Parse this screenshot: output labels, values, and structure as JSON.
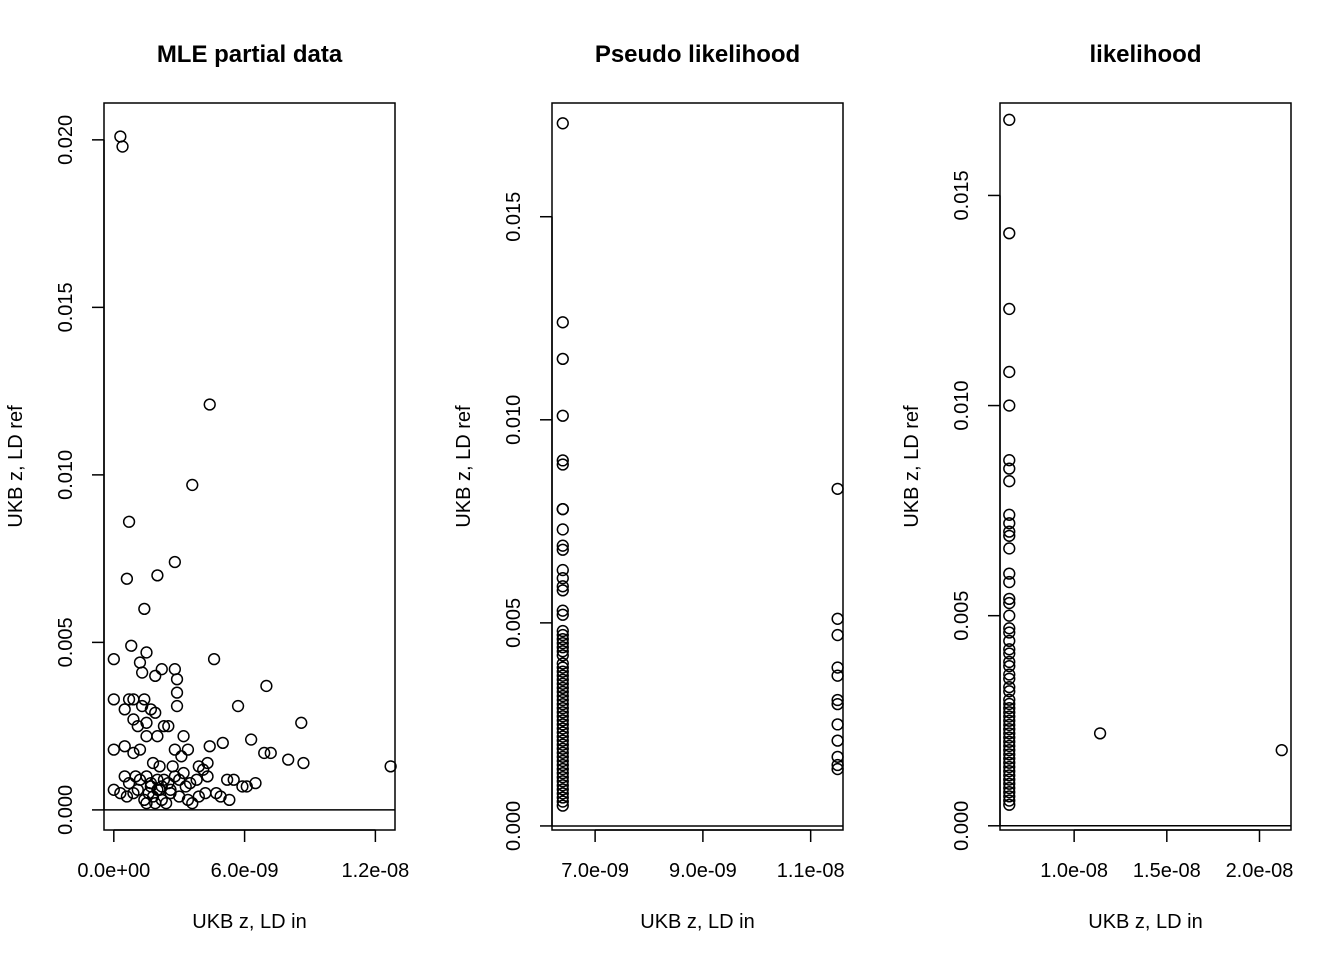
{
  "chart_data": [
    {
      "type": "scatter",
      "title": "MLE partial data",
      "xlabel": "UKB z, LD in",
      "ylabel": "UKB z, LD ref",
      "xlim": [
        -4.5e-10,
        1.29e-08
      ],
      "ylim": [
        -0.0006,
        0.0211
      ],
      "xticks": [
        0,
        6e-09,
        1.2e-08
      ],
      "xtick_labels": [
        "0.0e+00",
        "6.0e-09",
        "1.2e-08"
      ],
      "yticks": [
        0,
        0.005,
        0.01,
        0.015,
        0.02
      ],
      "ytick_labels": [
        "0.000",
        "0.005",
        "0.010",
        "0.015",
        "0.020"
      ],
      "hline": 0,
      "grid": false,
      "points": [
        [
          3e-10,
          0.0201
        ],
        [
          4e-10,
          0.0198
        ],
        [
          4.4e-09,
          0.0121
        ],
        [
          3.6e-09,
          0.0097
        ],
        [
          7e-10,
          0.0086
        ],
        [
          2.8e-09,
          0.0074
        ],
        [
          2e-09,
          0.007
        ],
        [
          6e-10,
          0.0069
        ],
        [
          1.4e-09,
          0.006
        ],
        [
          8e-10,
          0.0049
        ],
        [
          1.5e-09,
          0.0047
        ],
        [
          0,
          0.0045
        ],
        [
          1.2e-09,
          0.0044
        ],
        [
          4.6e-09,
          0.0045
        ],
        [
          2.2e-09,
          0.0042
        ],
        [
          2.8e-09,
          0.0042
        ],
        [
          1.3e-09,
          0.0041
        ],
        [
          1.9e-09,
          0.004
        ],
        [
          2.9e-09,
          0.0039
        ],
        [
          7e-09,
          0.0037
        ],
        [
          2.9e-09,
          0.0035
        ],
        [
          0,
          0.0033
        ],
        [
          7e-10,
          0.0033
        ],
        [
          9e-10,
          0.0033
        ],
        [
          1.4e-09,
          0.0033
        ],
        [
          2.9e-09,
          0.0031
        ],
        [
          5.7e-09,
          0.0031
        ],
        [
          1.7e-09,
          0.003
        ],
        [
          1.9e-09,
          0.0029
        ],
        [
          5e-10,
          0.003
        ],
        [
          1.3e-09,
          0.0031
        ],
        [
          9e-10,
          0.0027
        ],
        [
          1.1e-09,
          0.0025
        ],
        [
          1.5e-09,
          0.0026
        ],
        [
          2.3e-09,
          0.0025
        ],
        [
          2.5e-09,
          0.0025
        ],
        [
          8.6e-09,
          0.0026
        ],
        [
          6.3e-09,
          0.0021
        ],
        [
          1.5e-09,
          0.0022
        ],
        [
          2e-09,
          0.0022
        ],
        [
          3.2e-09,
          0.0022
        ],
        [
          2.8e-09,
          0.0018
        ],
        [
          3.4e-09,
          0.0018
        ],
        [
          4.4e-09,
          0.0019
        ],
        [
          5e-09,
          0.002
        ],
        [
          6.9e-09,
          0.0017
        ],
        [
          7.2e-09,
          0.0017
        ],
        [
          8e-09,
          0.0015
        ],
        [
          8.7e-09,
          0.0014
        ],
        [
          1.27e-08,
          0.0013
        ],
        [
          0,
          0.0018
        ],
        [
          5e-10,
          0.0019
        ],
        [
          9e-10,
          0.0017
        ],
        [
          1.2e-09,
          0.0018
        ],
        [
          1.8e-09,
          0.0014
        ],
        [
          2.1e-09,
          0.0013
        ],
        [
          2.7e-09,
          0.0013
        ],
        [
          3.1e-09,
          0.0016
        ],
        [
          3.9e-09,
          0.0013
        ],
        [
          4.3e-09,
          0.0014
        ],
        [
          5e-10,
          0.001
        ],
        [
          7e-10,
          0.0008
        ],
        [
          1e-09,
          0.001
        ],
        [
          1.2e-09,
          0.0009
        ],
        [
          1.5e-09,
          0.001
        ],
        [
          1.7e-09,
          0.0008
        ],
        [
          2e-09,
          0.0009
        ],
        [
          2.2e-09,
          0.0007
        ],
        [
          2.5e-09,
          0.0008
        ],
        [
          2.8e-09,
          0.001
        ],
        [
          3e-09,
          0.0009
        ],
        [
          3.2e-09,
          0.0011
        ],
        [
          3.5e-09,
          0.0008
        ],
        [
          3.8e-09,
          0.0009
        ],
        [
          4.1e-09,
          0.0012
        ],
        [
          4.3e-09,
          0.001
        ],
        [
          4.7e-09,
          0.0005
        ],
        [
          5.2e-09,
          0.0009
        ],
        [
          5.5e-09,
          0.0009
        ],
        [
          5.9e-09,
          0.0007
        ],
        [
          6.1e-09,
          0.0007
        ],
        [
          6.5e-09,
          0.0008
        ],
        [
          0,
          0.0006
        ],
        [
          3e-10,
          0.0005
        ],
        [
          6e-10,
          0.0004
        ],
        [
          9e-10,
          0.0005
        ],
        [
          1.1e-09,
          0.0006
        ],
        [
          1.4e-09,
          0.0003
        ],
        [
          1.6e-09,
          0.0005
        ],
        [
          1.8e-09,
          0.0004
        ],
        [
          2e-09,
          0.0006
        ],
        [
          2.2e-09,
          0.0003
        ],
        [
          2.4e-09,
          0.0002
        ],
        [
          2.6e-09,
          0.0005
        ],
        [
          3e-09,
          0.0004
        ],
        [
          3.4e-09,
          0.0003
        ],
        [
          3.6e-09,
          0.0002
        ],
        [
          3.9e-09,
          0.0004
        ],
        [
          4.2e-09,
          0.0005
        ],
        [
          4.9e-09,
          0.0004
        ],
        [
          5.3e-09,
          0.0003
        ],
        [
          1.5e-09,
          0.0002
        ],
        [
          1.9e-09,
          0.0002
        ],
        [
          2.1e-09,
          0.0006
        ],
        [
          1.7e-09,
          0.0007
        ],
        [
          2.3e-09,
          0.0009
        ],
        [
          2.6e-09,
          0.0006
        ],
        [
          3.3e-09,
          0.0007
        ]
      ]
    },
    {
      "type": "scatter",
      "title": "Pseudo likelihood",
      "xlabel": "UKB z, LD in",
      "ylabel": "UKB z, LD ref",
      "xlim": [
        6.2e-09,
        1.16e-08
      ],
      "ylim": [
        -0.0001,
        0.0178
      ],
      "xticks": [
        7e-09,
        9e-09,
        1.1e-08
      ],
      "xtick_labels": [
        "7.0e-09",
        "9.0e-09",
        "1.1e-08"
      ],
      "yticks": [
        0,
        0.005,
        0.01,
        0.015
      ],
      "ytick_labels": [
        "0.000",
        "0.005",
        "0.010",
        "0.015"
      ],
      "hline": 0,
      "grid": false,
      "points": [
        [
          6.4e-09,
          0.0173
        ],
        [
          6.4e-09,
          0.0124
        ],
        [
          6.4e-09,
          0.0115
        ],
        [
          6.4e-09,
          0.0101
        ],
        [
          6.4e-09,
          0.009
        ],
        [
          6.4e-09,
          0.0089
        ],
        [
          6.4e-09,
          0.0078
        ],
        [
          6.4e-09,
          0.0078
        ],
        [
          6.4e-09,
          0.0073
        ],
        [
          6.4e-09,
          0.0069
        ],
        [
          6.4e-09,
          0.0068
        ],
        [
          6.4e-09,
          0.0063
        ],
        [
          6.4e-09,
          0.0061
        ],
        [
          6.4e-09,
          0.0059
        ],
        [
          6.4e-09,
          0.0058
        ],
        [
          6.4e-09,
          0.0053
        ],
        [
          6.4e-09,
          0.0052
        ],
        [
          6.4e-09,
          0.0048
        ],
        [
          6.4e-09,
          0.0047
        ],
        [
          6.4e-09,
          0.0046
        ],
        [
          6.4e-09,
          0.0045
        ],
        [
          6.4e-09,
          0.0044
        ],
        [
          6.4e-09,
          0.0043
        ],
        [
          6.4e-09,
          0.0042
        ],
        [
          6.4e-09,
          0.004
        ],
        [
          6.4e-09,
          0.0039
        ],
        [
          6.4e-09,
          0.0038
        ],
        [
          6.4e-09,
          0.0037
        ],
        [
          6.4e-09,
          0.0036
        ],
        [
          6.4e-09,
          0.0035
        ],
        [
          6.4e-09,
          0.0034
        ],
        [
          6.4e-09,
          0.0033
        ],
        [
          6.4e-09,
          0.0032
        ],
        [
          6.4e-09,
          0.0031
        ],
        [
          6.4e-09,
          0.003
        ],
        [
          6.4e-09,
          0.0029
        ],
        [
          6.4e-09,
          0.0028
        ],
        [
          6.4e-09,
          0.0027
        ],
        [
          6.4e-09,
          0.0026
        ],
        [
          6.4e-09,
          0.0025
        ],
        [
          6.4e-09,
          0.0024
        ],
        [
          6.4e-09,
          0.0023
        ],
        [
          6.4e-09,
          0.0022
        ],
        [
          6.4e-09,
          0.0021
        ],
        [
          6.4e-09,
          0.002
        ],
        [
          6.4e-09,
          0.0019
        ],
        [
          6.4e-09,
          0.0018
        ],
        [
          6.4e-09,
          0.0017
        ],
        [
          6.4e-09,
          0.0016
        ],
        [
          6.4e-09,
          0.0015
        ],
        [
          6.4e-09,
          0.0014
        ],
        [
          6.4e-09,
          0.0013
        ],
        [
          6.4e-09,
          0.0012
        ],
        [
          6.4e-09,
          0.0011
        ],
        [
          6.4e-09,
          0.001
        ],
        [
          6.4e-09,
          0.0009
        ],
        [
          6.4e-09,
          0.0008
        ],
        [
          6.4e-09,
          0.0007
        ],
        [
          6.4e-09,
          0.0006
        ],
        [
          6.4e-09,
          0.0005
        ],
        [
          1.15e-08,
          0.0083
        ],
        [
          1.15e-08,
          0.0051
        ],
        [
          1.15e-08,
          0.0047
        ],
        [
          1.15e-08,
          0.0039
        ],
        [
          1.15e-08,
          0.0037
        ],
        [
          1.15e-08,
          0.0031
        ],
        [
          1.15e-08,
          0.003
        ],
        [
          1.15e-08,
          0.0025
        ],
        [
          1.15e-08,
          0.0021
        ],
        [
          1.15e-08,
          0.0017
        ],
        [
          1.15e-08,
          0.0015
        ],
        [
          1.15e-08,
          0.0014
        ]
      ]
    },
    {
      "type": "scatter",
      "title": "likelihood",
      "xlabel": "UKB z, LD in",
      "ylabel": "UKB z, LD ref",
      "xlim": [
        6e-09,
        2.17e-08
      ],
      "ylim": [
        -0.0001,
        0.0172
      ],
      "xticks": [
        1e-08,
        1.5e-08,
        2e-08
      ],
      "xtick_labels": [
        "1.0e-08",
        "1.5e-08",
        "2.0e-08"
      ],
      "yticks": [
        0,
        0.005,
        0.01,
        0.015
      ],
      "ytick_labels": [
        "0.000",
        "0.005",
        "0.010",
        "0.015"
      ],
      "hline": 0,
      "grid": false,
      "points": [
        [
          6.5e-09,
          0.0168
        ],
        [
          6.5e-09,
          0.0141
        ],
        [
          6.5e-09,
          0.0123
        ],
        [
          6.5e-09,
          0.0108
        ],
        [
          6.5e-09,
          0.01
        ],
        [
          6.5e-09,
          0.0087
        ],
        [
          6.5e-09,
          0.0085
        ],
        [
          6.5e-09,
          0.0082
        ],
        [
          6.5e-09,
          0.0074
        ],
        [
          6.5e-09,
          0.0072
        ],
        [
          6.5e-09,
          0.007
        ],
        [
          6.5e-09,
          0.0069
        ],
        [
          6.5e-09,
          0.0066
        ],
        [
          6.5e-09,
          0.006
        ],
        [
          6.5e-09,
          0.0058
        ],
        [
          6.5e-09,
          0.0054
        ],
        [
          6.5e-09,
          0.0053
        ],
        [
          6.5e-09,
          0.005
        ],
        [
          6.5e-09,
          0.0047
        ],
        [
          6.5e-09,
          0.0046
        ],
        [
          6.5e-09,
          0.0044
        ],
        [
          6.5e-09,
          0.0042
        ],
        [
          6.5e-09,
          0.0041
        ],
        [
          6.5e-09,
          0.0039
        ],
        [
          6.5e-09,
          0.0038
        ],
        [
          6.5e-09,
          0.0036
        ],
        [
          6.5e-09,
          0.0035
        ],
        [
          6.5e-09,
          0.0033
        ],
        [
          6.5e-09,
          0.0032
        ],
        [
          6.5e-09,
          0.003
        ],
        [
          6.5e-09,
          0.0029
        ],
        [
          6.5e-09,
          0.0028
        ],
        [
          6.5e-09,
          0.0027
        ],
        [
          6.5e-09,
          0.0026
        ],
        [
          6.5e-09,
          0.0025
        ],
        [
          6.5e-09,
          0.0024
        ],
        [
          6.5e-09,
          0.0023
        ],
        [
          6.5e-09,
          0.0022
        ],
        [
          6.5e-09,
          0.0021
        ],
        [
          6.5e-09,
          0.002
        ],
        [
          6.5e-09,
          0.0019
        ],
        [
          6.5e-09,
          0.0018
        ],
        [
          6.5e-09,
          0.0017
        ],
        [
          6.5e-09,
          0.0016
        ],
        [
          6.5e-09,
          0.0015
        ],
        [
          6.5e-09,
          0.0014
        ],
        [
          6.5e-09,
          0.0013
        ],
        [
          6.5e-09,
          0.0012
        ],
        [
          6.5e-09,
          0.0011
        ],
        [
          6.5e-09,
          0.001
        ],
        [
          6.5e-09,
          0.0009
        ],
        [
          6.5e-09,
          0.0008
        ],
        [
          6.5e-09,
          0.0007
        ],
        [
          6.5e-09,
          0.0006
        ],
        [
          6.5e-09,
          0.0005
        ],
        [
          1.14e-08,
          0.0022
        ],
        [
          2.12e-08,
          0.0018
        ]
      ]
    }
  ]
}
